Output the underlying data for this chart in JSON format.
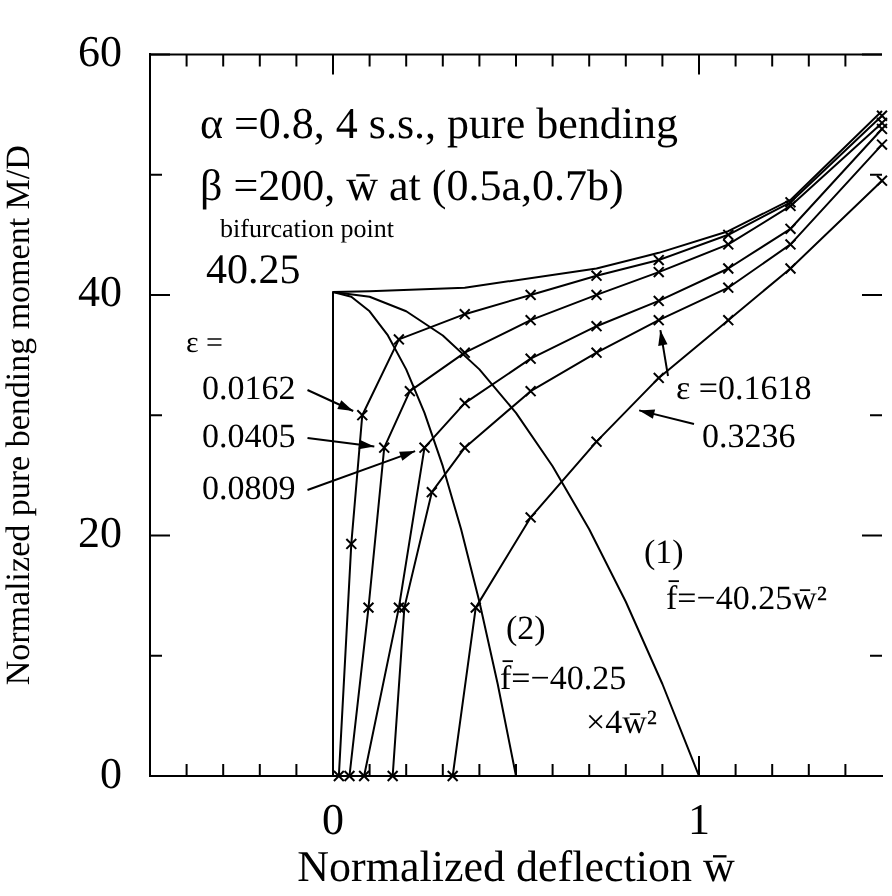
{
  "chart_data": {
    "type": "line",
    "title": "α =0.8, 4 s.s., pure bending",
    "subtitle": "β =200, w̄ at (0.5a,0.7b)",
    "xlabel": "Normalized deflection w̄",
    "ylabel": "Normalized pure bending moment M/D",
    "xlim": [
      -0.5,
      1.5
    ],
    "ylim": [
      0,
      60
    ],
    "xticks": [
      {
        "value": -0.4,
        "label": null
      },
      {
        "value": -0.3,
        "label": null
      },
      {
        "value": -0.2,
        "label": null
      },
      {
        "value": -0.1,
        "label": null
      },
      0,
      {
        "value": 0.1,
        "label": null
      },
      {
        "value": 0.2,
        "label": null
      },
      {
        "value": 0.3,
        "label": null
      },
      {
        "value": 0.4,
        "label": null
      },
      {
        "value": 0.5,
        "label": null
      },
      {
        "value": 0.6,
        "label": null
      },
      {
        "value": 0.7,
        "label": null
      },
      {
        "value": 0.8,
        "label": null
      },
      {
        "value": 0.9,
        "label": null
      },
      1,
      {
        "value": 1.1,
        "label": null
      },
      {
        "value": 1.2,
        "label": null
      },
      {
        "value": 1.3,
        "label": null
      },
      {
        "value": 1.4,
        "label": null
      }
    ],
    "yticks": [
      0,
      {
        "value": 10,
        "label": null
      },
      20,
      {
        "value": 30,
        "label": null
      },
      40,
      {
        "value": 50,
        "label": null
      },
      60
    ],
    "grid": false,
    "legend": false,
    "series": [
      {
        "color": "#000000",
        "marker": "none",
        "x": [
          0,
          0,
          0.1,
          0.36,
          0.72,
          0.89,
          1.08,
          1.25,
          1.5
        ],
        "values": [
          0,
          40.25,
          40.3,
          40.6,
          42.2,
          43.5,
          45.3,
          47.9,
          55.3
        ]
      },
      {
        "color": "#000000",
        "marker": "cross",
        "x": [
          0.016,
          0.05,
          0.08,
          0.18,
          0.36,
          0.54,
          0.72,
          0.89,
          1.08,
          1.25,
          1.5
        ],
        "values": [
          0,
          19.3,
          30,
          36.3,
          38.4,
          40,
          41.6,
          42.9,
          45,
          47.7,
          54.9
        ]
      },
      {
        "color": "#000000",
        "marker": "cross",
        "x": [
          0.045,
          0.097,
          0.14,
          0.21,
          0.36,
          0.54,
          0.72,
          0.89,
          1.08,
          1.25,
          1.5
        ],
        "values": [
          0,
          14,
          27.3,
          32,
          35.2,
          37.9,
          40,
          41.9,
          44.2,
          47.4,
          54.3
        ]
      },
      {
        "color": "#000000",
        "marker": "cross",
        "x": [
          0.085,
          0.18,
          0.25,
          0.36,
          0.54,
          0.72,
          0.89,
          1.08,
          1.25,
          1.5
        ],
        "values": [
          0,
          14,
          27.3,
          31,
          34.7,
          37.4,
          39.5,
          42.2,
          45.5,
          53.8
        ]
      },
      {
        "color": "#000000",
        "marker": "cross",
        "x": [
          0.163,
          0.195,
          0.27,
          0.36,
          0.54,
          0.72,
          0.89,
          1.08,
          1.25,
          1.5
        ],
        "values": [
          0,
          14,
          23.6,
          27.3,
          32,
          35.2,
          37.9,
          40.6,
          44.2,
          52.5
        ]
      },
      {
        "color": "#000000",
        "marker": "cross",
        "x": [
          0.327,
          0.39,
          0.54,
          0.72,
          0.89,
          1.08,
          1.25,
          1.5
        ],
        "values": [
          0,
          14,
          21.5,
          27.8,
          33.1,
          37.9,
          42.2,
          49.5
        ]
      },
      {
        "color": "#000000",
        "marker": "none",
        "x": [
          0,
          0.1,
          0.2,
          0.3,
          0.4,
          0.5,
          0.6,
          0.7,
          0.8,
          0.9,
          1
        ],
        "values": [
          40.25,
          39.85,
          38.64,
          36.63,
          33.81,
          30.19,
          25.76,
          20.52,
          14.49,
          7.65,
          0
        ]
      },
      {
        "color": "#000000",
        "marker": "none",
        "x": [
          0,
          0.05,
          0.1,
          0.15,
          0.2,
          0.25,
          0.3,
          0.35,
          0.4,
          0.45,
          0.5
        ],
        "values": [
          40.25,
          39.85,
          38.64,
          36.63,
          33.81,
          30.19,
          25.76,
          20.52,
          14.49,
          7.65,
          0
        ]
      }
    ],
    "annotations": [
      "bifurcation point",
      "40.25",
      "ε =",
      {
        "text": "0.0162",
        "x": 0.08,
        "y": 30
      },
      {
        "text": "0.0405",
        "x": 0.14,
        "y": 27.3
      },
      {
        "text": "0.0809",
        "x": 0.25,
        "y": 27.3
      },
      {
        "text": "ε =0.1618",
        "x": 0.89,
        "y": 37.9
      },
      {
        "text": "0.3236",
        "x": 0.81,
        "y": 30.6
      },
      "(1)",
      "f̄=−40.25w̄²",
      "(2)",
      "f̄=−40.25",
      "×4w̄²"
    ]
  }
}
